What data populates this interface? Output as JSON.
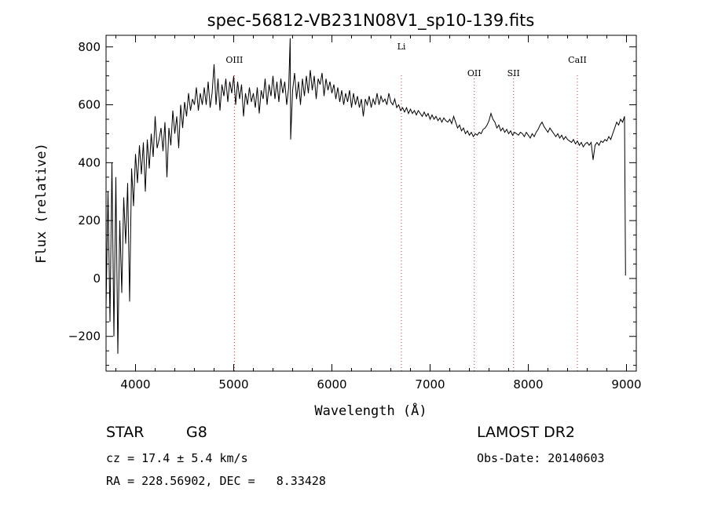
{
  "chart_data": {
    "type": "line",
    "title": "spec-56812-VB231N08V1_sp10-139.fits",
    "xlabel": "Wavelength (Å)",
    "ylabel": "Flux (relative)",
    "xlim": [
      3700,
      9100
    ],
    "ylim": [
      -320,
      840
    ],
    "xticks": [
      4000,
      5000,
      6000,
      7000,
      8000,
      9000
    ],
    "yticks": [
      -200,
      0,
      200,
      400,
      600,
      800
    ],
    "grid": false,
    "series": [
      {
        "color": "#000000",
        "points": [
          [
            3700,
            -100
          ],
          [
            3720,
            300
          ],
          [
            3740,
            -150
          ],
          [
            3760,
            400
          ],
          [
            3780,
            -200
          ],
          [
            3800,
            350
          ],
          [
            3820,
            -260
          ],
          [
            3840,
            200
          ],
          [
            3860,
            -50
          ],
          [
            3880,
            280
          ],
          [
            3900,
            120
          ],
          [
            3920,
            330
          ],
          [
            3940,
            -80
          ],
          [
            3960,
            380
          ],
          [
            3980,
            250
          ],
          [
            4000,
            430
          ],
          [
            4020,
            330
          ],
          [
            4040,
            460
          ],
          [
            4060,
            360
          ],
          [
            4080,
            470
          ],
          [
            4100,
            300
          ],
          [
            4120,
            480
          ],
          [
            4140,
            380
          ],
          [
            4160,
            500
          ],
          [
            4180,
            420
          ],
          [
            4200,
            560
          ],
          [
            4220,
            450
          ],
          [
            4240,
            480
          ],
          [
            4260,
            520
          ],
          [
            4280,
            440
          ],
          [
            4300,
            540
          ],
          [
            4320,
            350
          ],
          [
            4340,
            520
          ],
          [
            4360,
            460
          ],
          [
            4380,
            580
          ],
          [
            4400,
            500
          ],
          [
            4420,
            560
          ],
          [
            4440,
            450
          ],
          [
            4460,
            600
          ],
          [
            4480,
            520
          ],
          [
            4500,
            610
          ],
          [
            4520,
            560
          ],
          [
            4540,
            640
          ],
          [
            4560,
            580
          ],
          [
            4580,
            620
          ],
          [
            4600,
            600
          ],
          [
            4620,
            660
          ],
          [
            4640,
            580
          ],
          [
            4660,
            640
          ],
          [
            4680,
            600
          ],
          [
            4700,
            660
          ],
          [
            4720,
            600
          ],
          [
            4740,
            680
          ],
          [
            4760,
            590
          ],
          [
            4780,
            640
          ],
          [
            4800,
            740
          ],
          [
            4820,
            600
          ],
          [
            4840,
            690
          ],
          [
            4860,
            580
          ],
          [
            4880,
            670
          ],
          [
            4900,
            630
          ],
          [
            4920,
            690
          ],
          [
            4940,
            610
          ],
          [
            4960,
            680
          ],
          [
            4980,
            640
          ],
          [
            5000,
            700
          ],
          [
            5020,
            600
          ],
          [
            5040,
            680
          ],
          [
            5060,
            620
          ],
          [
            5080,
            670
          ],
          [
            5100,
            560
          ],
          [
            5120,
            640
          ],
          [
            5140,
            600
          ],
          [
            5160,
            660
          ],
          [
            5180,
            610
          ],
          [
            5200,
            640
          ],
          [
            5220,
            590
          ],
          [
            5240,
            660
          ],
          [
            5260,
            570
          ],
          [
            5280,
            650
          ],
          [
            5300,
            620
          ],
          [
            5320,
            690
          ],
          [
            5340,
            600
          ],
          [
            5360,
            670
          ],
          [
            5380,
            630
          ],
          [
            5400,
            700
          ],
          [
            5420,
            620
          ],
          [
            5440,
            680
          ],
          [
            5460,
            610
          ],
          [
            5480,
            690
          ],
          [
            5500,
            640
          ],
          [
            5520,
            680
          ],
          [
            5540,
            600
          ],
          [
            5560,
            660
          ],
          [
            5575,
            830
          ],
          [
            5580,
            480
          ],
          [
            5600,
            650
          ],
          [
            5620,
            710
          ],
          [
            5640,
            620
          ],
          [
            5660,
            680
          ],
          [
            5680,
            600
          ],
          [
            5700,
            690
          ],
          [
            5720,
            630
          ],
          [
            5740,
            700
          ],
          [
            5760,
            640
          ],
          [
            5780,
            720
          ],
          [
            5800,
            650
          ],
          [
            5820,
            700
          ],
          [
            5840,
            620
          ],
          [
            5860,
            690
          ],
          [
            5880,
            670
          ],
          [
            5900,
            710
          ],
          [
            5920,
            630
          ],
          [
            5940,
            690
          ],
          [
            5960,
            650
          ],
          [
            5980,
            680
          ],
          [
            6000,
            640
          ],
          [
            6020,
            670
          ],
          [
            6040,
            620
          ],
          [
            6060,
            660
          ],
          [
            6080,
            610
          ],
          [
            6100,
            650
          ],
          [
            6120,
            600
          ],
          [
            6140,
            640
          ],
          [
            6160,
            610
          ],
          [
            6180,
            650
          ],
          [
            6200,
            590
          ],
          [
            6220,
            640
          ],
          [
            6240,
            600
          ],
          [
            6260,
            630
          ],
          [
            6280,
            590
          ],
          [
            6300,
            620
          ],
          [
            6320,
            560
          ],
          [
            6340,
            620
          ],
          [
            6360,
            600
          ],
          [
            6380,
            630
          ],
          [
            6400,
            590
          ],
          [
            6420,
            620
          ],
          [
            6440,
            600
          ],
          [
            6460,
            640
          ],
          [
            6480,
            600
          ],
          [
            6500,
            630
          ],
          [
            6520,
            610
          ],
          [
            6540,
            620
          ],
          [
            6560,
            600
          ],
          [
            6580,
            640
          ],
          [
            6600,
            610
          ],
          [
            6620,
            600
          ],
          [
            6640,
            620
          ],
          [
            6660,
            590
          ],
          [
            6680,
            600
          ],
          [
            6700,
            580
          ],
          [
            6720,
            590
          ],
          [
            6740,
            575
          ],
          [
            6760,
            590
          ],
          [
            6780,
            570
          ],
          [
            6800,
            585
          ],
          [
            6820,
            570
          ],
          [
            6840,
            580
          ],
          [
            6860,
            565
          ],
          [
            6880,
            580
          ],
          [
            6900,
            570
          ],
          [
            6920,
            560
          ],
          [
            6940,
            575
          ],
          [
            6960,
            560
          ],
          [
            6980,
            570
          ],
          [
            7000,
            550
          ],
          [
            7020,
            565
          ],
          [
            7040,
            550
          ],
          [
            7060,
            560
          ],
          [
            7080,
            545
          ],
          [
            7100,
            555
          ],
          [
            7120,
            540
          ],
          [
            7140,
            555
          ],
          [
            7160,
            545
          ],
          [
            7180,
            540
          ],
          [
            7200,
            550
          ],
          [
            7220,
            535
          ],
          [
            7240,
            560
          ],
          [
            7260,
            540
          ],
          [
            7280,
            520
          ],
          [
            7300,
            530
          ],
          [
            7320,
            510
          ],
          [
            7340,
            520
          ],
          [
            7360,
            500
          ],
          [
            7380,
            510
          ],
          [
            7400,
            495
          ],
          [
            7420,
            505
          ],
          [
            7440,
            490
          ],
          [
            7460,
            500
          ],
          [
            7480,
            495
          ],
          [
            7500,
            505
          ],
          [
            7520,
            500
          ],
          [
            7540,
            515
          ],
          [
            7560,
            520
          ],
          [
            7580,
            530
          ],
          [
            7600,
            545
          ],
          [
            7620,
            570
          ],
          [
            7640,
            550
          ],
          [
            7660,
            540
          ],
          [
            7680,
            520
          ],
          [
            7700,
            530
          ],
          [
            7720,
            510
          ],
          [
            7740,
            520
          ],
          [
            7760,
            505
          ],
          [
            7780,
            515
          ],
          [
            7800,
            500
          ],
          [
            7820,
            510
          ],
          [
            7840,
            495
          ],
          [
            7860,
            505
          ],
          [
            7880,
            500
          ],
          [
            7900,
            495
          ],
          [
            7920,
            505
          ],
          [
            7940,
            500
          ],
          [
            7960,
            490
          ],
          [
            7980,
            505
          ],
          [
            8000,
            495
          ],
          [
            8020,
            485
          ],
          [
            8040,
            500
          ],
          [
            8060,
            490
          ],
          [
            8080,
            505
          ],
          [
            8100,
            515
          ],
          [
            8120,
            530
          ],
          [
            8140,
            540
          ],
          [
            8160,
            525
          ],
          [
            8180,
            515
          ],
          [
            8200,
            505
          ],
          [
            8220,
            520
          ],
          [
            8240,
            510
          ],
          [
            8260,
            500
          ],
          [
            8280,
            490
          ],
          [
            8300,
            500
          ],
          [
            8320,
            485
          ],
          [
            8340,
            495
          ],
          [
            8360,
            480
          ],
          [
            8380,
            490
          ],
          [
            8400,
            480
          ],
          [
            8420,
            475
          ],
          [
            8440,
            470
          ],
          [
            8460,
            480
          ],
          [
            8480,
            465
          ],
          [
            8500,
            475
          ],
          [
            8520,
            460
          ],
          [
            8540,
            470
          ],
          [
            8560,
            455
          ],
          [
            8580,
            465
          ],
          [
            8600,
            470
          ],
          [
            8620,
            460
          ],
          [
            8640,
            470
          ],
          [
            8660,
            410
          ],
          [
            8680,
            460
          ],
          [
            8700,
            470
          ],
          [
            8720,
            460
          ],
          [
            8740,
            475
          ],
          [
            8760,
            470
          ],
          [
            8780,
            480
          ],
          [
            8800,
            475
          ],
          [
            8820,
            490
          ],
          [
            8840,
            480
          ],
          [
            8860,
            500
          ],
          [
            8880,
            520
          ],
          [
            8900,
            540
          ],
          [
            8920,
            530
          ],
          [
            8940,
            550
          ],
          [
            8960,
            540
          ],
          [
            8980,
            560
          ],
          [
            8990,
            10
          ]
        ]
      }
    ],
    "annotations": [
      {
        "label": "OIII",
        "x": 5007
      },
      {
        "label": "Li",
        "x": 6708
      },
      {
        "label": "OII",
        "x": 7450
      },
      {
        "label": "SII",
        "x": 7850
      },
      {
        "label": "CaII",
        "x": 8500
      }
    ]
  },
  "info": {
    "class_label": "STAR",
    "subclass": "G8",
    "cz": "cz = 17.4 ± 5.4 km/s",
    "radec": "RA = 228.56902, DEC =   8.33428",
    "survey": "LAMOST DR2",
    "obs_date": "Obs-Date: 20140603"
  }
}
